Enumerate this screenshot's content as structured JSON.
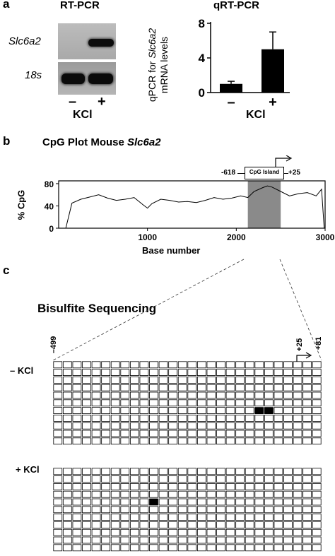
{
  "panel_a": {
    "letter": "a",
    "gel": {
      "title": "RT-PCR",
      "row_labels": [
        "Slc6a2",
        "18s"
      ],
      "lane_labels": [
        "–",
        "+"
      ],
      "treatment": "KCl"
    },
    "qpcr": {
      "title": "qRT-PCR",
      "ylabel_prefix": "qPCR for ",
      "ylabel_gene": "Slc6a2",
      "ylabel_line2": "mRNA levels",
      "treatment": "KCl"
    }
  },
  "panel_b": {
    "letter": "b",
    "title_prefix": "CpG Plot Mouse ",
    "title_gene": "Slc6a2",
    "island_label": "CpG Island",
    "island_left": "-618",
    "island_right": "+25"
  },
  "panel_c": {
    "letter": "c",
    "title": "Bisulfite Sequencing",
    "pos_start": "–499",
    "pos_tss": "+25",
    "pos_end": "+81",
    "group_minus": "– KCl",
    "group_plus": "+ KCl",
    "columns": 28,
    "rows_per_group": 11,
    "methylated_minus": [
      {
        "row": 6,
        "cols": [
          21,
          22
        ]
      }
    ],
    "methylated_plus": [
      {
        "row": 4,
        "cols": [
          10
        ]
      }
    ]
  },
  "chart_data": [
    {
      "type": "bar",
      "title": "qRT-PCR",
      "categories": [
        "–",
        "+"
      ],
      "values": [
        1.0,
        5.0
      ],
      "error": [
        0.3,
        2.0
      ],
      "xlabel": "KCl",
      "ylabel": "qPCR for Slc6a2 mRNA levels",
      "yticks": [
        0,
        4,
        8
      ],
      "ylim": [
        0,
        8
      ],
      "color": "#000000"
    },
    {
      "type": "line",
      "title": "CpG Plot Mouse Slc6a2",
      "xlabel": "Base number",
      "ylabel": "% CpG",
      "xlim": [
        0,
        3000
      ],
      "ylim": [
        0,
        85
      ],
      "xticks": [
        1000,
        2000,
        3000
      ],
      "yticks": [
        0,
        40,
        80
      ],
      "highlight_region": [
        2130,
        2500
      ],
      "highlight_color": "#8a8a8a",
      "x": [
        80,
        150,
        250,
        350,
        450,
        550,
        650,
        750,
        850,
        950,
        1000,
        1050,
        1150,
        1250,
        1350,
        1450,
        1550,
        1650,
        1750,
        1850,
        1950,
        2050,
        2130,
        2200,
        2300,
        2350,
        2400,
        2500,
        2600,
        2700,
        2800,
        2900,
        2960,
        2990
      ],
      "values": [
        0,
        45,
        52,
        56,
        60,
        54,
        50,
        52,
        55,
        42,
        36,
        44,
        52,
        50,
        47,
        48,
        46,
        50,
        55,
        52,
        54,
        58,
        55,
        66,
        73,
        76,
        74,
        66,
        58,
        62,
        64,
        58,
        70,
        0
      ]
    }
  ]
}
